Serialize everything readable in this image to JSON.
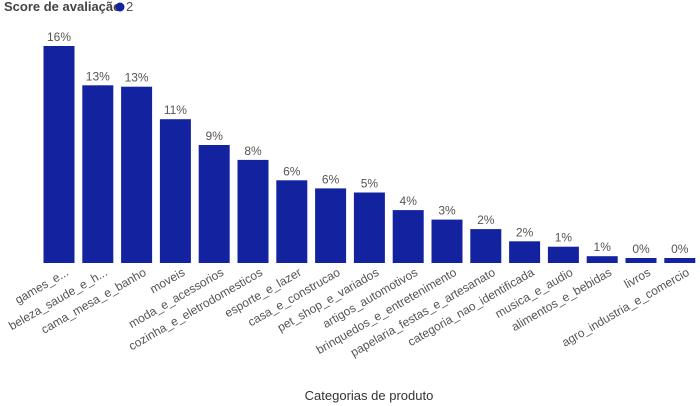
{
  "legend": {
    "title": "Score de avaliação",
    "entry_label": "2",
    "entry_color": "#1323a0"
  },
  "chart_data": {
    "type": "bar",
    "xlabel": "Categorias de produto",
    "ylabel": "",
    "bar_color": "#1323a0",
    "ylim": [
      0,
      16
    ],
    "grid": false,
    "legend_position": "top-left",
    "categories": [
      "games_e...",
      "beleza_saude_e_h...",
      "cama_mesa_e_banho",
      "moveis",
      "moda_e_acessorios",
      "cozinha_e_eletrodomesticos",
      "esporte_e_lazer",
      "casa_e_construcao",
      "pet_shop_e_variados",
      "artigos_automotivos",
      "brinquedos_e_entretenimento",
      "papelaria_festas_e_artesanato",
      "categoria_nao_identificada",
      "musica_e_audio",
      "alimentos_e_bebidas",
      "livros",
      "agro_industria_e_comercio"
    ],
    "values": [
      16,
      13.1,
      13,
      10.6,
      8.7,
      7.6,
      6.1,
      5.5,
      5.2,
      3.9,
      3.2,
      2.5,
      1.6,
      1.2,
      0.5,
      0.2,
      0.2
    ],
    "data_labels": [
      "16%",
      "13%",
      "13%",
      "11%",
      "9%",
      "8%",
      "6%",
      "6%",
      "5%",
      "4%",
      "3%",
      "2%",
      "2%",
      "1%",
      "1%",
      "0%",
      "0%"
    ]
  }
}
